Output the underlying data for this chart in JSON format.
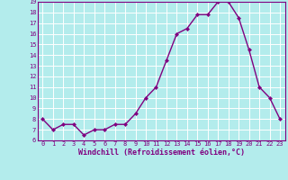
{
  "x": [
    0,
    1,
    2,
    3,
    4,
    5,
    6,
    7,
    8,
    9,
    10,
    11,
    12,
    13,
    14,
    15,
    16,
    17,
    18,
    19,
    20,
    21,
    22,
    23
  ],
  "y": [
    8.0,
    7.0,
    7.5,
    7.5,
    6.5,
    7.0,
    7.0,
    7.5,
    7.5,
    8.5,
    10.0,
    11.0,
    13.5,
    16.0,
    16.5,
    17.8,
    17.8,
    19.0,
    19.0,
    17.5,
    14.5,
    11.0,
    10.0,
    8.0
  ],
  "line_color": "#800080",
  "marker": "D",
  "marker_size": 2,
  "bg_color": "#b3ecec",
  "grid_color": "#ffffff",
  "xlabel": "Windchill (Refroidissement éolien,°C)",
  "xlabel_color": "#800080",
  "tick_color": "#800080",
  "ylim": [
    6,
    19
  ],
  "xlim_min": -0.5,
  "xlim_max": 23.5,
  "yticks": [
    6,
    7,
    8,
    9,
    10,
    11,
    12,
    13,
    14,
    15,
    16,
    17,
    18,
    19
  ],
  "xticks": [
    0,
    1,
    2,
    3,
    4,
    5,
    6,
    7,
    8,
    9,
    10,
    11,
    12,
    13,
    14,
    15,
    16,
    17,
    18,
    19,
    20,
    21,
    22,
    23
  ],
  "line_width": 1.0,
  "tick_fontsize": 5.0,
  "xlabel_fontsize": 6.0,
  "spine_color": "#800080"
}
